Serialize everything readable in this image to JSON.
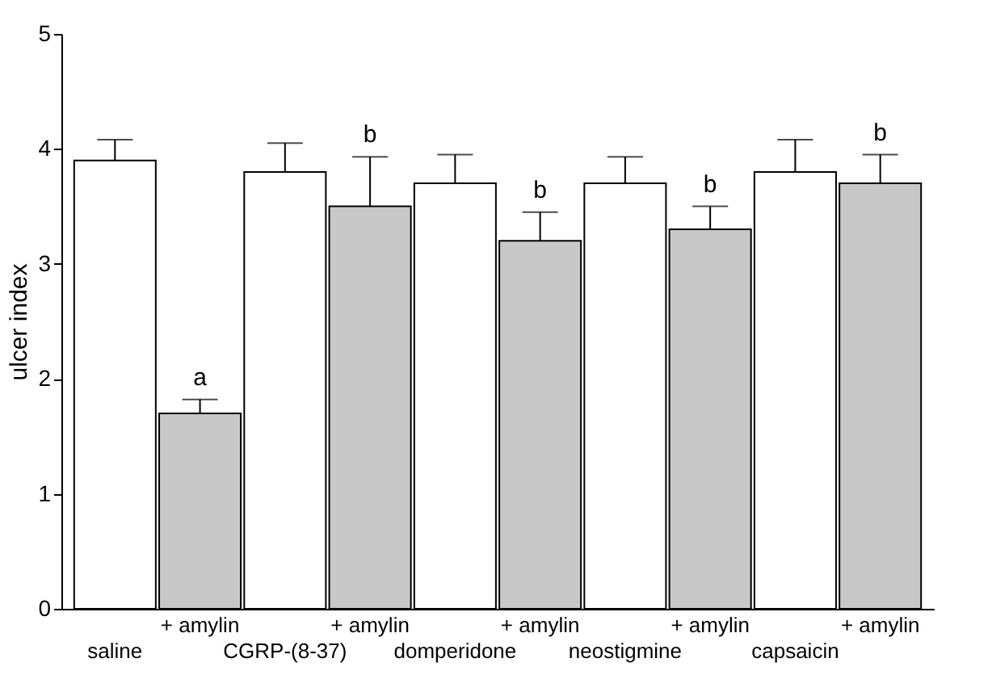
{
  "chart_data": {
    "type": "bar",
    "ylabel": "ulcer index",
    "categories": [
      "saline",
      "+ amylin",
      "CGRP-(8-37)",
      "+ amylin",
      "domperidone",
      "+ amylin",
      "neostigmine",
      "+ amylin",
      "capsaicin",
      "+ amylin"
    ],
    "values": [
      3.9,
      1.7,
      3.8,
      3.5,
      3.7,
      3.2,
      3.7,
      3.3,
      3.8,
      3.7
    ],
    "colors": [
      "#ffffff",
      "#c8c8c8",
      "#ffffff",
      "#c8c8c8",
      "#ffffff",
      "#c8c8c8",
      "#ffffff",
      "#c8c8c8",
      "#ffffff",
      "#c8c8c8"
    ],
    "errors": [
      [
        3.9,
        4.08
      ],
      [
        1.7,
        1.82
      ],
      [
        3.8,
        4.05
      ],
      [
        3.5,
        3.93
      ],
      [
        3.7,
        3.95
      ],
      [
        3.2,
        3.45
      ],
      [
        3.7,
        3.93
      ],
      [
        3.3,
        3.5
      ],
      [
        3.8,
        4.08
      ],
      [
        3.7,
        3.95
      ]
    ],
    "ylim": [
      0,
      5
    ],
    "yticks": [
      0,
      1,
      2,
      3,
      4,
      5
    ],
    "annotations": [
      {
        "text": "a",
        "x": "+ amylin",
        "y": 1.82
      },
      "b",
      "b",
      "b",
      "b"
    ]
  }
}
